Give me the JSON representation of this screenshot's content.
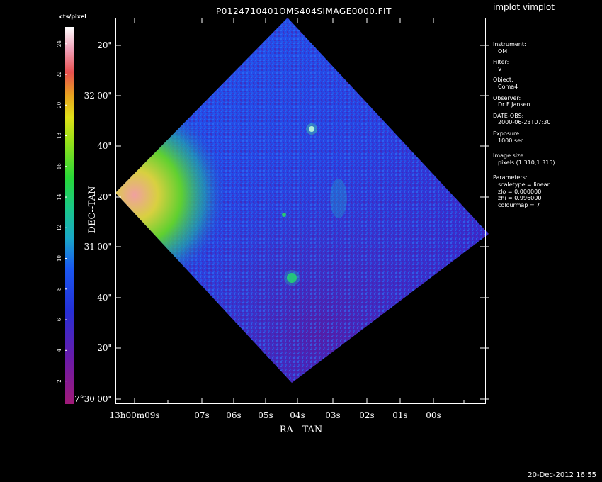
{
  "window": {
    "app_title": "implot vimplot",
    "plot_title": "P0124710401OMS404SIMAGE0000.FIT",
    "timestamp": "20-Dec-2012 16:55"
  },
  "colorbar": {
    "label": "cts/pixel",
    "ticks": [
      "24",
      "22",
      "20",
      "18",
      "16",
      "14",
      "12",
      "10",
      "8",
      "6",
      "4",
      "2"
    ],
    "tick_values": [
      24,
      22,
      20,
      18,
      16,
      14,
      12,
      10,
      8,
      6,
      4,
      2
    ],
    "range": [
      0.5,
      25.1
    ]
  },
  "axes": {
    "xlabel": "RA---TAN",
    "ylabel": "DEC--TAN",
    "x_ticks": [
      "13h00m09s",
      "07s",
      "06s",
      "05s",
      "04s",
      "03s",
      "02s",
      "01s",
      "00s"
    ],
    "y_ticks": [
      "20\"",
      "32'00\"",
      "40\"",
      "20\"",
      "31'00\"",
      "40\"",
      "20\"",
      "7°30'00\""
    ]
  },
  "info": {
    "instrument_label": "Instrument:",
    "instrument": "OM",
    "filter_label": "Filter:",
    "filter": "V",
    "object_label": "Object:",
    "object": "Coma4",
    "observer_label": "Observer:",
    "observer": "Dr F Jansen",
    "date_label": "DATE-OBS:",
    "date": "2000-06-23T07:30",
    "exposure_label": "Exposure:",
    "exposure": "1000 sec",
    "image_size_label": "Image size:",
    "image_size": "pixels (1:310,1:315)",
    "parameters_label": "Parameters:",
    "scaletype": "scaletype = linear",
    "zlo": "zlo = 0.000000",
    "zhi": "zhi = 0.996000",
    "colourmap": "colourmap = 7"
  }
}
